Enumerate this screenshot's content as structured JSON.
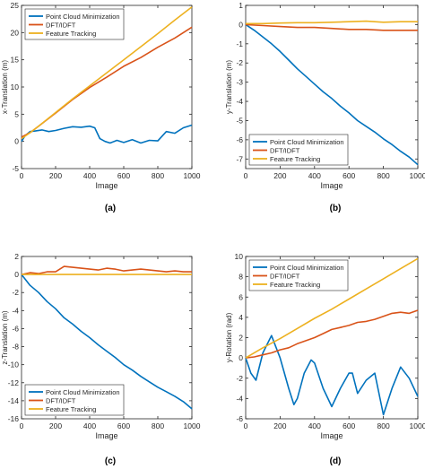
{
  "colors": {
    "point_cloud": "#0072BD",
    "dft": "#D95319",
    "feature": "#EDB120",
    "axis": "#262626",
    "legend_border": "#262626"
  },
  "chart_data": [
    {
      "id": "a",
      "type": "line",
      "caption": "(a)",
      "xlabel": "Image",
      "ylabel": "x-Translation (m)",
      "xlim": [
        0,
        1000
      ],
      "ylim": [
        -5,
        25
      ],
      "xticks": [
        0,
        200,
        400,
        600,
        800,
        1000
      ],
      "yticks": [
        -5,
        0,
        5,
        10,
        15,
        20,
        25
      ],
      "legend_position": "top-left",
      "series": [
        {
          "name": "Point Cloud Minimization",
          "color_key": "point_cloud",
          "x": [
            0,
            20,
            50,
            80,
            120,
            160,
            200,
            250,
            300,
            350,
            400,
            430,
            460,
            490,
            520,
            560,
            600,
            650,
            700,
            750,
            800,
            850,
            900,
            950,
            1000
          ],
          "y": [
            0,
            1.0,
            1.8,
            1.9,
            2.1,
            1.8,
            2.0,
            2.4,
            2.7,
            2.6,
            2.8,
            2.5,
            0.5,
            0.0,
            -0.3,
            0.2,
            -0.2,
            0.3,
            -0.3,
            0.2,
            0.1,
            1.8,
            1.5,
            2.5,
            3.0
          ]
        },
        {
          "name": "DFT/IDFT",
          "color_key": "dft",
          "x": [
            0,
            50,
            100,
            200,
            300,
            400,
            500,
            600,
            700,
            800,
            900,
            1000
          ],
          "y": [
            0.8,
            1.6,
            2.8,
            5.2,
            7.7,
            9.9,
            11.8,
            13.8,
            15.4,
            17.3,
            19.0,
            21.0
          ]
        },
        {
          "name": "Feature Tracking",
          "color_key": "feature",
          "x": [
            0,
            50,
            100,
            200,
            300,
            400,
            500,
            600,
            700,
            800,
            900,
            1000
          ],
          "y": [
            0.5,
            1.6,
            2.8,
            5.3,
            7.8,
            10.2,
            12.6,
            15.0,
            17.4,
            19.8,
            22.3,
            24.7
          ]
        }
      ]
    },
    {
      "id": "b",
      "type": "line",
      "caption": "(b)",
      "xlabel": "Image",
      "ylabel": "y-Translation (m)",
      "xlim": [
        0,
        1000
      ],
      "ylim": [
        -7.5,
        1
      ],
      "xticks": [
        0,
        200,
        400,
        600,
        800,
        1000
      ],
      "yticks": [
        -7,
        -6,
        -5,
        -4,
        -3,
        -2,
        -1,
        0,
        1
      ],
      "legend_position": "bottom-left",
      "series": [
        {
          "name": "Point Cloud Minimization",
          "color_key": "point_cloud",
          "x": [
            0,
            50,
            100,
            150,
            200,
            250,
            300,
            350,
            400,
            450,
            500,
            550,
            600,
            650,
            700,
            750,
            800,
            850,
            900,
            950,
            1000
          ],
          "y": [
            0,
            -0.3,
            -0.65,
            -1.0,
            -1.4,
            -1.85,
            -2.3,
            -2.7,
            -3.1,
            -3.5,
            -3.85,
            -4.25,
            -4.6,
            -5.0,
            -5.3,
            -5.6,
            -5.95,
            -6.25,
            -6.6,
            -6.9,
            -7.3
          ]
        },
        {
          "name": "DFT/IDFT",
          "color_key": "dft",
          "x": [
            0,
            100,
            200,
            300,
            400,
            500,
            600,
            700,
            800,
            900,
            1000
          ],
          "y": [
            0,
            -0.05,
            -0.1,
            -0.15,
            -0.15,
            -0.2,
            -0.25,
            -0.25,
            -0.3,
            -0.3,
            -0.3
          ]
        },
        {
          "name": "Feature Tracking",
          "color_key": "feature",
          "x": [
            0,
            100,
            200,
            300,
            400,
            500,
            600,
            700,
            800,
            900,
            1000
          ],
          "y": [
            0.05,
            0.05,
            0.08,
            0.1,
            0.1,
            0.12,
            0.15,
            0.18,
            0.12,
            0.15,
            0.15
          ]
        }
      ]
    },
    {
      "id": "c",
      "type": "line",
      "caption": "(c)",
      "xlabel": "Image",
      "ylabel": "z-Translation (m)",
      "xlim": [
        0,
        1000
      ],
      "ylim": [
        -16,
        2
      ],
      "xticks": [
        0,
        200,
        400,
        600,
        800,
        1000
      ],
      "yticks": [
        -16,
        -14,
        -12,
        -10,
        -8,
        -6,
        -4,
        -2,
        0,
        2
      ],
      "legend_position": "bottom-left",
      "series": [
        {
          "name": "Point Cloud Minimization",
          "color_key": "point_cloud",
          "x": [
            0,
            50,
            100,
            150,
            200,
            250,
            300,
            350,
            400,
            450,
            500,
            550,
            600,
            650,
            700,
            750,
            800,
            850,
            900,
            950,
            1000
          ],
          "y": [
            0,
            -1.2,
            -2.0,
            -3.0,
            -3.8,
            -4.8,
            -5.5,
            -6.3,
            -7.0,
            -7.8,
            -8.5,
            -9.2,
            -10.0,
            -10.6,
            -11.3,
            -11.9,
            -12.5,
            -13.0,
            -13.5,
            -14.1,
            -14.9
          ]
        },
        {
          "name": "DFT/IDFT",
          "color_key": "dft",
          "x": [
            0,
            50,
            100,
            150,
            200,
            250,
            300,
            350,
            400,
            450,
            500,
            550,
            600,
            650,
            700,
            750,
            800,
            850,
            900,
            950,
            1000
          ],
          "y": [
            0,
            0.2,
            0.1,
            0.3,
            0.3,
            0.9,
            0.8,
            0.7,
            0.6,
            0.5,
            0.7,
            0.6,
            0.4,
            0.5,
            0.6,
            0.5,
            0.4,
            0.3,
            0.4,
            0.3,
            0.3
          ]
        },
        {
          "name": "Feature Tracking",
          "color_key": "feature",
          "x": [
            0,
            1000
          ],
          "y": [
            0,
            0
          ]
        }
      ]
    },
    {
      "id": "d",
      "type": "line",
      "caption": "(d)",
      "xlabel": "Image",
      "ylabel": "y-Rotation (rad)",
      "xlim": [
        0,
        1000
      ],
      "ylim": [
        -6,
        10
      ],
      "xticks": [
        0,
        200,
        400,
        600,
        800,
        1000
      ],
      "yticks": [
        -6,
        -4,
        -2,
        0,
        2,
        4,
        6,
        8,
        10
      ],
      "legend_position": "top-left",
      "series": [
        {
          "name": "Point Cloud Minimization",
          "color_key": "point_cloud",
          "x": [
            0,
            30,
            60,
            100,
            150,
            200,
            250,
            280,
            300,
            340,
            380,
            400,
            450,
            500,
            550,
            600,
            620,
            650,
            700,
            750,
            800,
            850,
            900,
            950,
            1000
          ],
          "y": [
            0,
            -1.5,
            -2.2,
            0.5,
            2.2,
            0.0,
            -3.0,
            -4.6,
            -4.0,
            -1.5,
            -0.2,
            -0.5,
            -3.0,
            -4.8,
            -3.0,
            -1.5,
            -1.5,
            -3.5,
            -2.2,
            -1.5,
            -5.6,
            -3.0,
            -0.9,
            -2.0,
            -3.8
          ]
        },
        {
          "name": "DFT/IDFT",
          "color_key": "dft",
          "x": [
            0,
            50,
            100,
            150,
            200,
            250,
            300,
            350,
            400,
            450,
            500,
            550,
            600,
            650,
            700,
            750,
            800,
            850,
            900,
            950,
            1000
          ],
          "y": [
            0,
            0.1,
            0.3,
            0.5,
            0.8,
            1.0,
            1.4,
            1.7,
            2.0,
            2.4,
            2.8,
            3.0,
            3.2,
            3.5,
            3.6,
            3.8,
            4.1,
            4.4,
            4.5,
            4.4,
            4.7
          ]
        },
        {
          "name": "Feature Tracking",
          "color_key": "feature",
          "x": [
            0,
            100,
            200,
            300,
            400,
            500,
            600,
            700,
            800,
            900,
            1000
          ],
          "y": [
            0,
            1.0,
            1.9,
            2.9,
            3.9,
            4.8,
            5.8,
            6.8,
            7.8,
            8.8,
            9.8
          ]
        }
      ]
    }
  ]
}
